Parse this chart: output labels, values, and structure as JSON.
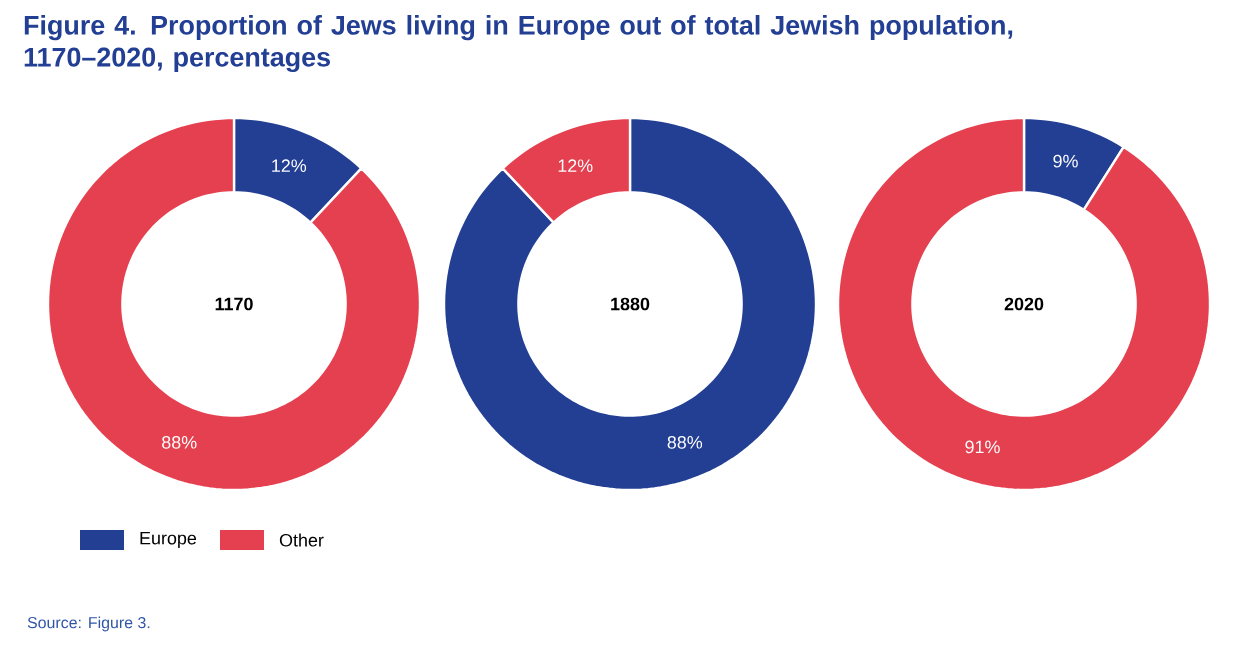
{
  "chart_data": [
    {
      "type": "donut",
      "title": "Figure 4. Proportion of Jews living in Europe out of total Jewish population, 1170–2020, percentages",
      "categories": [
        "Europe",
        "Other"
      ],
      "values": [
        12,
        88
      ],
      "value_labels": [
        "12%",
        "88%"
      ],
      "colors": [
        "#233f94",
        "#e5404f"
      ],
      "legend": "bottom left",
      "annotations": [
        "1170",
        "Source: Figure 3."
      ]
    },
    {
      "type": "donut",
      "categories": [
        null,
        null
      ],
      "values": [
        88,
        12
      ],
      "value_labels": [
        "88%",
        "12%"
      ],
      "colors": [
        "#233f94",
        "#e5404f"
      ],
      "annotations": [
        "1880"
      ]
    },
    {
      "type": "donut",
      "categories": [
        null,
        null
      ],
      "values": [
        9,
        91
      ],
      "value_labels": [
        "9%",
        "91%"
      ],
      "colors": [
        "#233f94",
        "#e5404f"
      ],
      "annotations": [
        "2020"
      ]
    }
  ]
}
